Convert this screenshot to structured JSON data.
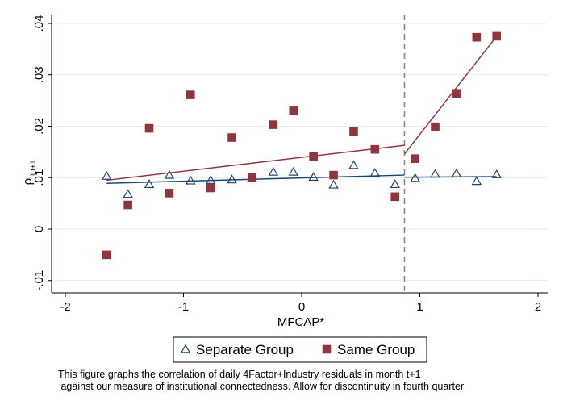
{
  "chart_data": {
    "type": "scatter",
    "xlabel": "MFCAP*",
    "ylabel": "ρ",
    "ylabel_sub": "ij,t+1",
    "xlim": [
      -2,
      2
    ],
    "ylim": [
      -0.01,
      0.04
    ],
    "x_ticks": [
      "-2",
      "-1",
      "0",
      "1",
      "2"
    ],
    "y_ticks": [
      "-.01",
      "0",
      ".01",
      ".02",
      ".03",
      ".04"
    ],
    "grid": "horizontal",
    "discontinuity_x": 0.87,
    "series": [
      {
        "name": "Separate Group",
        "marker": "triangle-hollow",
        "color": "#1a476f",
        "points": [
          [
            -1.65,
            0.0103
          ],
          [
            -1.47,
            0.0068
          ],
          [
            -1.29,
            0.0087
          ],
          [
            -1.12,
            0.0105
          ],
          [
            -0.94,
            0.0094
          ],
          [
            -0.77,
            0.0095
          ],
          [
            -0.59,
            0.0096
          ],
          [
            -0.42,
            0.0099
          ],
          [
            -0.24,
            0.0111
          ],
          [
            -0.07,
            0.0111
          ],
          [
            0.1,
            0.0101
          ],
          [
            0.27,
            0.0086
          ],
          [
            0.44,
            0.0124
          ],
          [
            0.62,
            0.0109
          ],
          [
            0.79,
            0.0087
          ],
          [
            0.96,
            0.0099
          ],
          [
            1.13,
            0.0107
          ],
          [
            1.31,
            0.0108
          ],
          [
            1.48,
            0.0093
          ],
          [
            1.65,
            0.0106
          ]
        ],
        "fit_lines": [
          [
            [
              -1.65,
              0.0089
            ],
            [
              0.87,
              0.0105
            ]
          ],
          [
            [
              0.87,
              0.0101
            ],
            [
              1.65,
              0.0102
            ]
          ]
        ]
      },
      {
        "name": "Same Group",
        "marker": "square-filled",
        "color": "#90353b",
        "points": [
          [
            -1.65,
            -0.005
          ],
          [
            -1.47,
            0.0047
          ],
          [
            -1.29,
            0.0196
          ],
          [
            -1.12,
            0.007
          ],
          [
            -0.94,
            0.0261
          ],
          [
            -0.77,
            0.008
          ],
          [
            -0.59,
            0.0178
          ],
          [
            -0.42,
            0.0101
          ],
          [
            -0.24,
            0.0203
          ],
          [
            -0.07,
            0.023
          ],
          [
            0.1,
            0.0141
          ],
          [
            0.27,
            0.0105
          ],
          [
            0.44,
            0.019
          ],
          [
            0.62,
            0.0155
          ],
          [
            0.79,
            0.0063
          ],
          [
            0.96,
            0.0137
          ],
          [
            1.13,
            0.0199
          ],
          [
            1.31,
            0.0264
          ],
          [
            1.48,
            0.0373
          ],
          [
            1.65,
            0.0375
          ]
        ],
        "fit_lines": [
          [
            [
              -1.65,
              0.0095
            ],
            [
              0.87,
              0.0163
            ]
          ],
          [
            [
              0.87,
              0.0146
            ],
            [
              1.65,
              0.0375
            ]
          ]
        ]
      }
    ],
    "legend": [
      "Separate Group",
      "Same Group"
    ],
    "legend_position": "bottom"
  },
  "caption": {
    "line1": "This figure graphs the correlation of daily 4Factor+Industry residuals in month t+1",
    "line2": " against our measure of institutional connectedness. Allow for discontinuity in fourth quarter"
  }
}
